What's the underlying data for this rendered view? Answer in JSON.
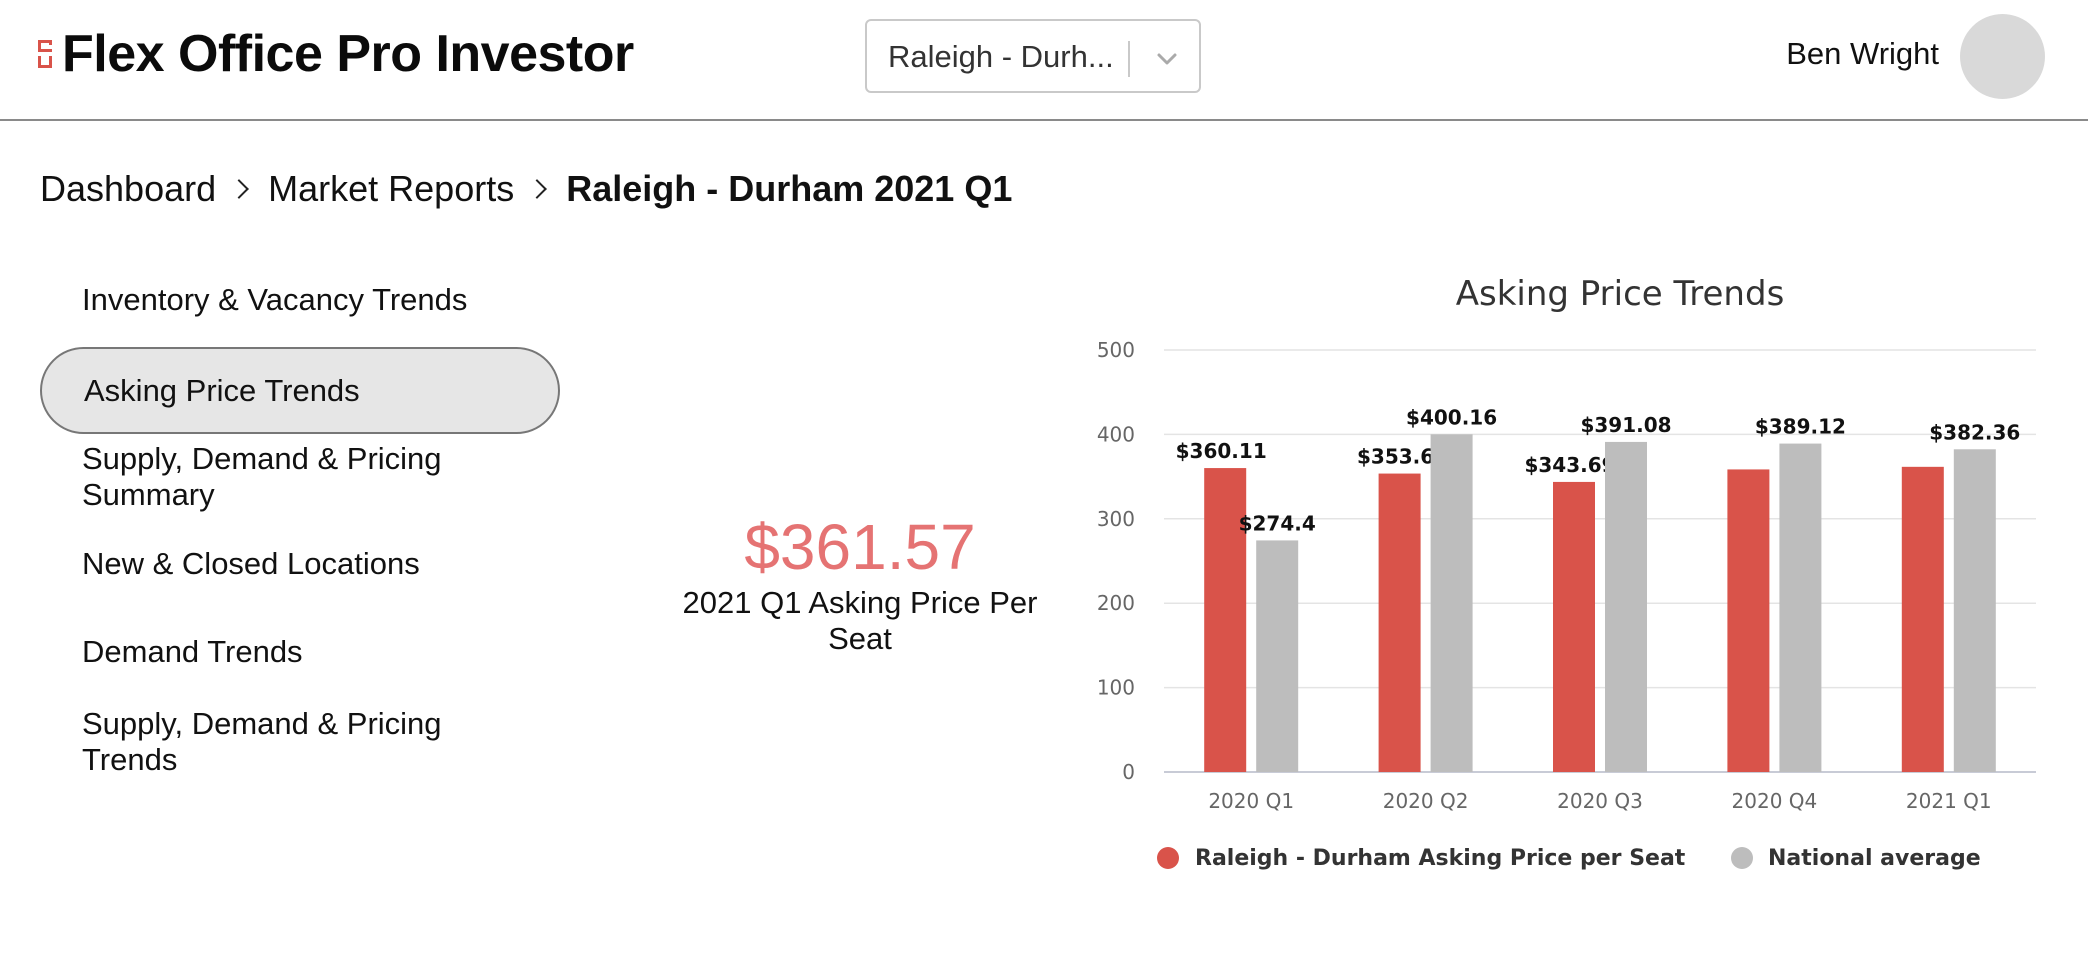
{
  "header": {
    "app_title": "Flex Office Pro Investor",
    "market_select": {
      "value": "Raleigh - Durh..."
    },
    "user_name": "Ben Wright",
    "icons": {
      "logo": "logo-mark",
      "dropdown": "chevron-down-icon",
      "avatar": "avatar"
    }
  },
  "breadcrumb": [
    {
      "label": "Dashboard"
    },
    {
      "label": "Market Reports"
    },
    {
      "label": "Raleigh - Durham 2021 Q1"
    }
  ],
  "sidebar": {
    "items": [
      {
        "label": "Inventory & Vacancy Trends",
        "active": false
      },
      {
        "label": "Asking Price Trends",
        "active": true
      },
      {
        "label": "Supply, Demand & Pricing Summary",
        "active": false
      },
      {
        "label": "New & Closed Locations",
        "active": false
      },
      {
        "label": "Demand Trends",
        "active": false
      },
      {
        "label": "Supply, Demand & Pricing Trends",
        "active": false
      }
    ]
  },
  "kpi": {
    "value": "$361.57",
    "label": "2021 Q1 Asking Price Per Seat"
  },
  "colors": {
    "accent": "#d9534a",
    "kpi": "#e57373",
    "national": "#bdbdbd"
  },
  "chart_data": {
    "type": "bar",
    "title": "Asking Price Trends",
    "categories": [
      "2020 Q1",
      "2020 Q2",
      "2020 Q3",
      "2020 Q4",
      "2021 Q1"
    ],
    "ylim": [
      0,
      500
    ],
    "yticks": [
      0,
      100,
      200,
      300,
      400,
      500
    ],
    "grid": true,
    "legend_position": "bottom",
    "series": [
      {
        "name": "Raleigh - Durham Asking Price per Seat",
        "color": "#d9534a",
        "values": [
          360.11,
          353.6,
          343.69,
          358.5,
          361.57
        ],
        "labels": [
          "$360.11",
          "$353.6",
          "$343.69",
          "",
          ""
        ]
      },
      {
        "name": "National average",
        "color": "#bdbdbd",
        "values": [
          274.4,
          400.16,
          391.08,
          389.12,
          382.36
        ],
        "labels": [
          "$274.4",
          "$400.16",
          "$391.08",
          "$389.12",
          "$382.36"
        ]
      }
    ]
  }
}
